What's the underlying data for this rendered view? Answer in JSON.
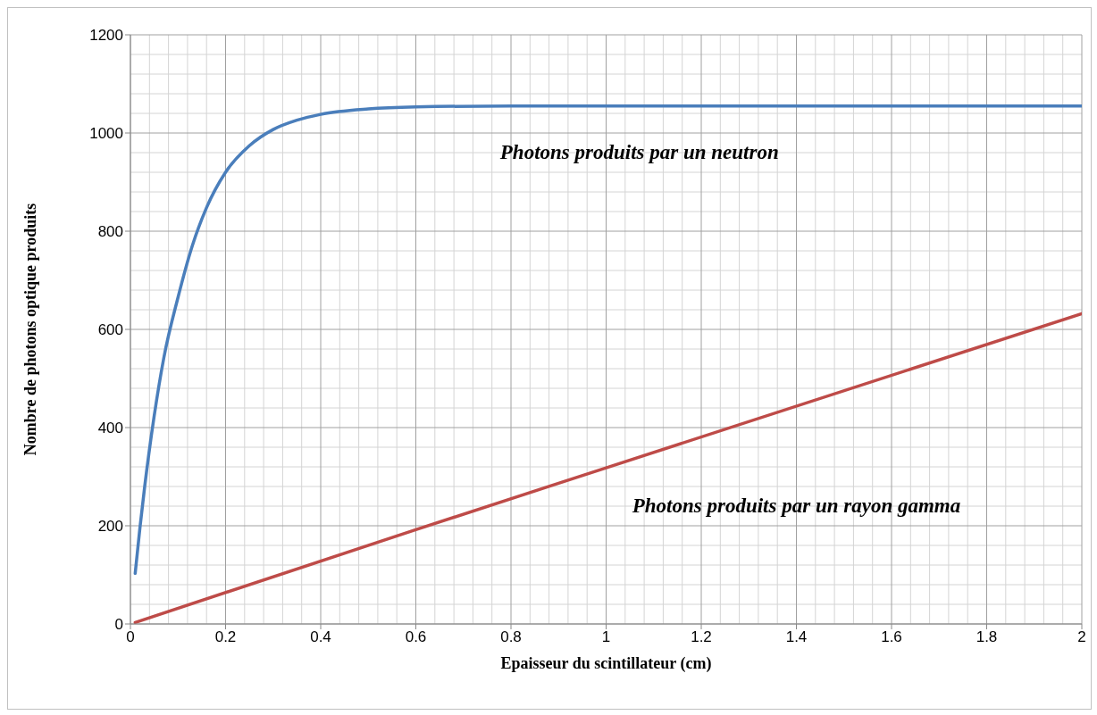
{
  "chart_data": {
    "type": "line",
    "xlabel": "Epaisseur du scintillateur (cm)",
    "ylabel": "Nombre de photons optique produits",
    "xlim": [
      0,
      2
    ],
    "xticks": [
      0,
      0.2,
      0.4,
      0.6,
      0.8,
      1,
      1.2,
      1.4,
      1.6,
      1.8,
      2
    ],
    "ylim": [
      0,
      1200
    ],
    "yticks": [
      0,
      200,
      400,
      600,
      800,
      1000,
      1200
    ],
    "grid": true,
    "marker": "none",
    "line_style": "solid",
    "series": [
      {
        "color": "#4a7ebb",
        "x": [
          0.01,
          0.02,
          0.03,
          0.05,
          0.07,
          0.1,
          0.13,
          0.16,
          0.2,
          0.25,
          0.3,
          0.35,
          0.4,
          0.5,
          0.6,
          0.8,
          1,
          1.5,
          2
        ],
        "values": [
          103,
          196,
          280,
          424,
          541,
          665,
          770,
          848,
          920,
          974,
          1007,
          1026,
          1038,
          1049,
          1053,
          1055,
          1055,
          1055,
          1055
        ]
      },
      {
        "color": "#be4b48",
        "x": [
          0.01,
          0.6,
          1,
          2
        ],
        "values": [
          3,
          192,
          318,
          632
        ]
      }
    ],
    "annotations": [
      "Photons produits par un neutron",
      "Photons produits par un rayon gamma"
    ]
  }
}
